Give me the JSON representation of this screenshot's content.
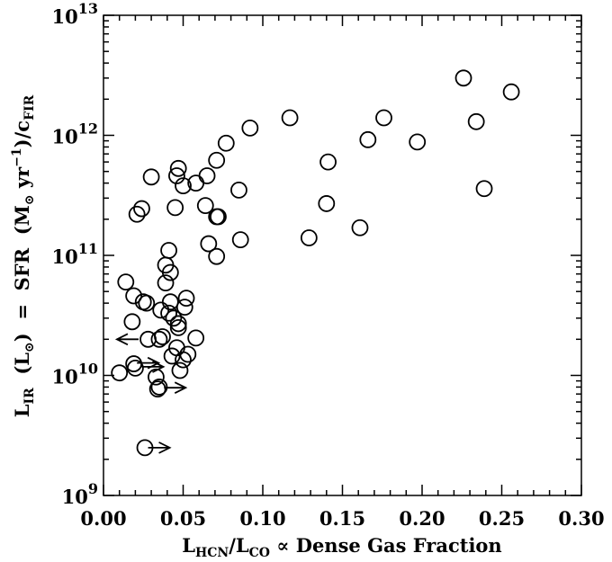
{
  "chart_data": {
    "type": "scatter",
    "xlabel": "L_HCN/L_CO ∝ Dense Gas Fraction",
    "ylabel": "L_IR (L_⊙) = SFR (M_⊙ yr^-1)/c_FIR",
    "xlim": [
      0.0,
      0.3
    ],
    "ylim": [
      1000000000.0,
      10000000000000.0
    ],
    "yscale": "log",
    "x_ticks": [
      0.0,
      0.05,
      0.1,
      0.15,
      0.2,
      0.25,
      0.3
    ],
    "x_tick_labels": [
      "0.00",
      "0.05",
      "0.10",
      "0.15",
      "0.20",
      "0.25",
      "0.30"
    ],
    "y_ticks": [
      1000000000.0,
      10000000000.0,
      100000000000.0,
      1000000000000.0,
      10000000000000.0
    ],
    "y_tick_labels": [
      {
        "base": "10",
        "exp": "9"
      },
      {
        "base": "10",
        "exp": "10"
      },
      {
        "base": "10",
        "exp": "11"
      },
      {
        "base": "10",
        "exp": "12"
      },
      {
        "base": "10",
        "exp": "13"
      }
    ],
    "x_label_parts": {
      "main1": "L",
      "sub1": "HCN",
      "main2": "/L",
      "sub2": "CO",
      "rest": " ∝ Dense Gas Fraction"
    },
    "y_label_parts": {
      "l": "L",
      "l_sub": "IR",
      "open": "  (L",
      "sun": "⊙",
      "mid": ")  =  SFR  (M",
      "msun": "⊙",
      "yr": " yr",
      "exp": "−1",
      "close": ")/c",
      "c_sub": "FIR"
    },
    "marker": "open-circle",
    "grid": false,
    "series": [
      {
        "marker": "circle",
        "points": [
          {
            "x": 0.226,
            "y": 3000000000000.0
          },
          {
            "x": 0.256,
            "y": 2300000000000.0
          },
          {
            "x": 0.234,
            "y": 1300000000000.0
          },
          {
            "x": 0.239,
            "y": 360000000000.0
          },
          {
            "x": 0.197,
            "y": 880000000000.0
          },
          {
            "x": 0.176,
            "y": 1400000000000.0
          },
          {
            "x": 0.166,
            "y": 920000000000.0
          },
          {
            "x": 0.161,
            "y": 170000000000.0
          },
          {
            "x": 0.141,
            "y": 600000000000.0
          },
          {
            "x": 0.14,
            "y": 270000000000.0
          },
          {
            "x": 0.129,
            "y": 140000000000.0
          },
          {
            "x": 0.117,
            "y": 1400000000000.0
          },
          {
            "x": 0.092,
            "y": 1150000000000.0
          },
          {
            "x": 0.085,
            "y": 350000000000.0
          },
          {
            "x": 0.086,
            "y": 135000000000.0
          },
          {
            "x": 0.077,
            "y": 860000000000.0
          },
          {
            "x": 0.071,
            "y": 620000000000.0
          },
          {
            "x": 0.065,
            "y": 460000000000.0
          },
          {
            "x": 0.058,
            "y": 400000000000.0
          },
          {
            "x": 0.05,
            "y": 380000000000.0
          },
          {
            "x": 0.047,
            "y": 530000000000.0
          },
          {
            "x": 0.046,
            "y": 460000000000.0
          },
          {
            "x": 0.03,
            "y": 450000000000.0
          },
          {
            "x": 0.024,
            "y": 245000000000.0
          },
          {
            "x": 0.021,
            "y": 220000000000.0
          },
          {
            "x": 0.045,
            "y": 250000000000.0
          },
          {
            "x": 0.064,
            "y": 260000000000.0
          },
          {
            "x": 0.071,
            "y": 210000000000.0
          },
          {
            "x": 0.072,
            "y": 210000000000.0
          },
          {
            "x": 0.066,
            "y": 125000000000.0
          },
          {
            "x": 0.071,
            "y": 98000000000.0
          },
          {
            "x": 0.041,
            "y": 110000000000.0
          },
          {
            "x": 0.039,
            "y": 83000000000.0
          },
          {
            "x": 0.042,
            "y": 72000000000.0
          },
          {
            "x": 0.039,
            "y": 59000000000.0
          },
          {
            "x": 0.014,
            "y": 60000000000.0
          },
          {
            "x": 0.019,
            "y": 46000000000.0
          },
          {
            "x": 0.025,
            "y": 41000000000.0
          },
          {
            "x": 0.027,
            "y": 40000000000.0
          },
          {
            "x": 0.042,
            "y": 41000000000.0
          },
          {
            "x": 0.052,
            "y": 44000000000.0
          },
          {
            "x": 0.051,
            "y": 37000000000.0
          },
          {
            "x": 0.036,
            "y": 35000000000.0
          },
          {
            "x": 0.041,
            "y": 33000000000.0
          },
          {
            "x": 0.044,
            "y": 30000000000.0
          },
          {
            "x": 0.047,
            "y": 27000000000.0
          },
          {
            "x": 0.047,
            "y": 25000000000.0
          },
          {
            "x": 0.018,
            "y": 28000000000.0
          },
          {
            "x": 0.028,
            "y": 20000000000.0
          },
          {
            "x": 0.035,
            "y": 20000000000.0
          },
          {
            "x": 0.037,
            "y": 21000000000.0
          },
          {
            "x": 0.058,
            "y": 20500000000.0
          },
          {
            "x": 0.046,
            "y": 17000000000.0
          },
          {
            "x": 0.053,
            "y": 15000000000.0
          },
          {
            "x": 0.043,
            "y": 14500000000.0
          },
          {
            "x": 0.05,
            "y": 13500000000.0
          },
          {
            "x": 0.048,
            "y": 11000000000.0
          },
          {
            "x": 0.019,
            "y": 12500000000.0
          },
          {
            "x": 0.02,
            "y": 11500000000.0
          },
          {
            "x": 0.01,
            "y": 10500000000.0
          },
          {
            "x": 0.033,
            "y": 9700000000.0
          },
          {
            "x": 0.035,
            "y": 8000000000.0
          },
          {
            "x": 0.034,
            "y": 7700000000.0
          },
          {
            "x": 0.026,
            "y": 2500000000.0
          }
        ]
      },
      {
        "marker": "arrow-left",
        "points": [
          {
            "x": 0.022,
            "y": 20000000000.0
          }
        ]
      },
      {
        "marker": "arrow-right",
        "points": [
          {
            "x": 0.021,
            "y": 12700000000.0
          },
          {
            "x": 0.024,
            "y": 11800000000.0
          },
          {
            "x": 0.038,
            "y": 7900000000.0
          },
          {
            "x": 0.028,
            "y": 2500000000.0
          }
        ]
      }
    ]
  }
}
